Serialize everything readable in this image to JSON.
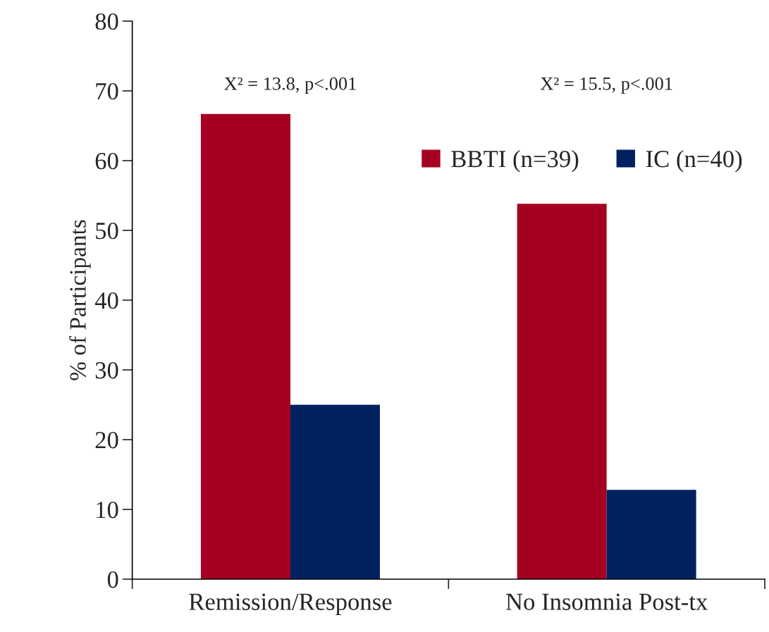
{
  "chart_data": {
    "type": "bar",
    "ylabel": "% of Participants",
    "categories": [
      "Remission/Response",
      "No Insomnia Post-tx"
    ],
    "series": [
      {
        "name": "BBTI (n=39)",
        "color": "#a50021",
        "values": [
          66.7,
          53.8
        ]
      },
      {
        "name": "IC (n=40)",
        "color": "#002060",
        "values": [
          25,
          12.8
        ]
      }
    ],
    "annotations": [
      "X² = 13.8, p<.001",
      "X² = 15.5, p<.001"
    ],
    "ylim": [
      0,
      80
    ],
    "yticks": [
      0,
      10,
      20,
      30,
      40,
      50,
      60,
      70,
      80
    ],
    "grid": false,
    "legend": "top right"
  }
}
